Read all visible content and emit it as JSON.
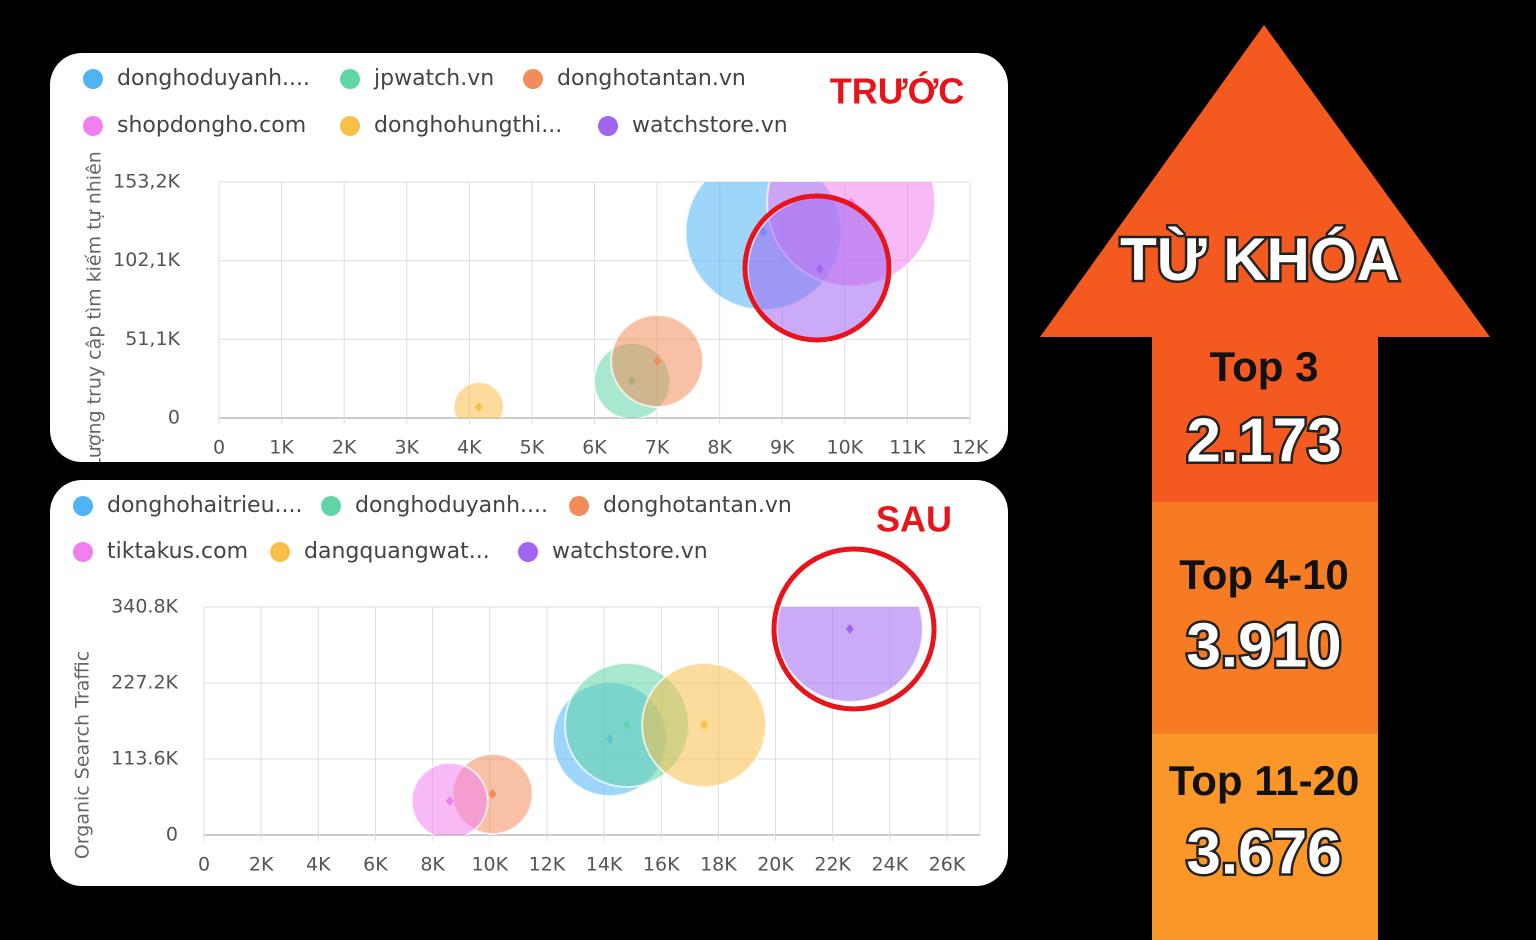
{
  "chart_data": [
    {
      "type": "bubble",
      "title": "TRƯỚC",
      "y_label": "Lượng truy cập tìm kiếm tự nhiên",
      "xlim": [
        0,
        12000
      ],
      "xticks": [
        0,
        {
          "value": 1000,
          "label": "1K"
        },
        {
          "value": 2000,
          "label": "2K"
        },
        {
          "value": 3000,
          "label": "3K"
        },
        {
          "value": 4000,
          "label": "4K"
        },
        {
          "value": 5000,
          "label": "5K"
        },
        {
          "value": 6000,
          "label": "6K"
        },
        {
          "value": 7000,
          "label": "7K"
        },
        {
          "value": 8000,
          "label": "8K"
        },
        {
          "value": 9000,
          "label": "9K"
        },
        {
          "value": 10000,
          "label": "10K"
        },
        {
          "value": 11000,
          "label": "11K"
        },
        {
          "value": 12000,
          "label": "12K"
        }
      ],
      "ylim": [
        0,
        153200
      ],
      "yticks": [
        0,
        {
          "value": 51100,
          "label": "51,1K"
        },
        {
          "value": 102100,
          "label": "102,1K"
        },
        {
          "value": 153200,
          "label": "153,2K"
        }
      ],
      "grid": true,
      "series": [
        {
          "name": "donghoduyanh....",
          "color": "#4fb3f6",
          "x": [
            8700
          ],
          "values": [
            120700
          ],
          "sizes": [
            6084
          ]
        },
        {
          "name": "jpwatch.vn",
          "color": "#5fd6a8",
          "x": [
            6600
          ],
          "values": [
            24000
          ],
          "sizes": [
            1444
          ]
        },
        {
          "name": "donghotantan.vn",
          "color": "#f28c5a",
          "x": [
            7000
          ],
          "values": [
            37000
          ],
          "sizes": [
            2116
          ]
        },
        {
          "name": "shopdongho.com",
          "color": "#f27ff0",
          "x": [
            10100
          ],
          "values": [
            140000
          ],
          "sizes": [
            7056
          ]
        },
        {
          "name": "donghohungthi...",
          "color": "#f7c04a",
          "x": [
            4150
          ],
          "values": [
            7100
          ],
          "sizes": [
            625
          ]
        },
        {
          "name": "watchstore.vn",
          "color": "#a066f0",
          "x": [
            9600
          ],
          "values": [
            96700
          ],
          "sizes": [
            5184
          ]
        }
      ]
    },
    {
      "type": "bubble",
      "title": "SAU",
      "y_label": "Organic Search Traffic",
      "xlim": [
        0,
        26000
      ],
      "xticks": [
        0,
        {
          "value": 2000,
          "label": "2K"
        },
        {
          "value": 4000,
          "label": "4K"
        },
        {
          "value": 6000,
          "label": "6K"
        },
        {
          "value": 8000,
          "label": "8K"
        },
        {
          "value": 10000,
          "label": "10K"
        },
        {
          "value": 12000,
          "label": "12K"
        },
        {
          "value": 14000,
          "label": "14K"
        },
        {
          "value": 16000,
          "label": "16K"
        },
        {
          "value": 18000,
          "label": "18K"
        },
        {
          "value": 20000,
          "label": "20K"
        },
        {
          "value": 22000,
          "label": "22K"
        },
        {
          "value": 24000,
          "label": "24K"
        },
        {
          "value": 26000,
          "label": "26K"
        }
      ],
      "ylim": [
        0,
        340800
      ],
      "yticks": [
        0,
        {
          "value": 113600,
          "label": "113.6K"
        },
        {
          "value": 227200,
          "label": "227.2K"
        },
        {
          "value": 340800,
          "label": "340.8K"
        }
      ],
      "grid": true,
      "series": [
        {
          "name": "donghohaitrieu....",
          "color": "#4fb3f6",
          "x": [
            14200
          ],
          "values": [
            143500
          ],
          "sizes": [
            3249
          ]
        },
        {
          "name": "donghoduyanh....",
          "color": "#5fd6a8",
          "x": [
            14800
          ],
          "values": [
            164400
          ],
          "sizes": [
            3844
          ]
        },
        {
          "name": "donghotantan.vn",
          "color": "#f28c5a",
          "x": [
            10100
          ],
          "values": [
            61300
          ],
          "sizes": [
            1600
          ]
        },
        {
          "name": "tiktakus.com",
          "color": "#f27ff0",
          "x": [
            8600
          ],
          "values": [
            50800
          ],
          "sizes": [
            1444
          ]
        },
        {
          "name": "dangquangwat...",
          "color": "#f7c04a",
          "x": [
            17500
          ],
          "values": [
            164400
          ],
          "sizes": [
            3844
          ]
        },
        {
          "name": "watchstore.vn",
          "color": "#a066f0",
          "x": [
            22600
          ],
          "values": [
            308000
          ],
          "sizes": [
            5329
          ]
        }
      ]
    }
  ],
  "arrow": {
    "title": "TỪ KHÓA",
    "levels": [
      {
        "label": "Top 3",
        "count": "2.173"
      },
      {
        "label": "Top 4-10",
        "count": "3.910"
      },
      {
        "label": "Top 11-20",
        "count": "3.676"
      }
    ]
  }
}
